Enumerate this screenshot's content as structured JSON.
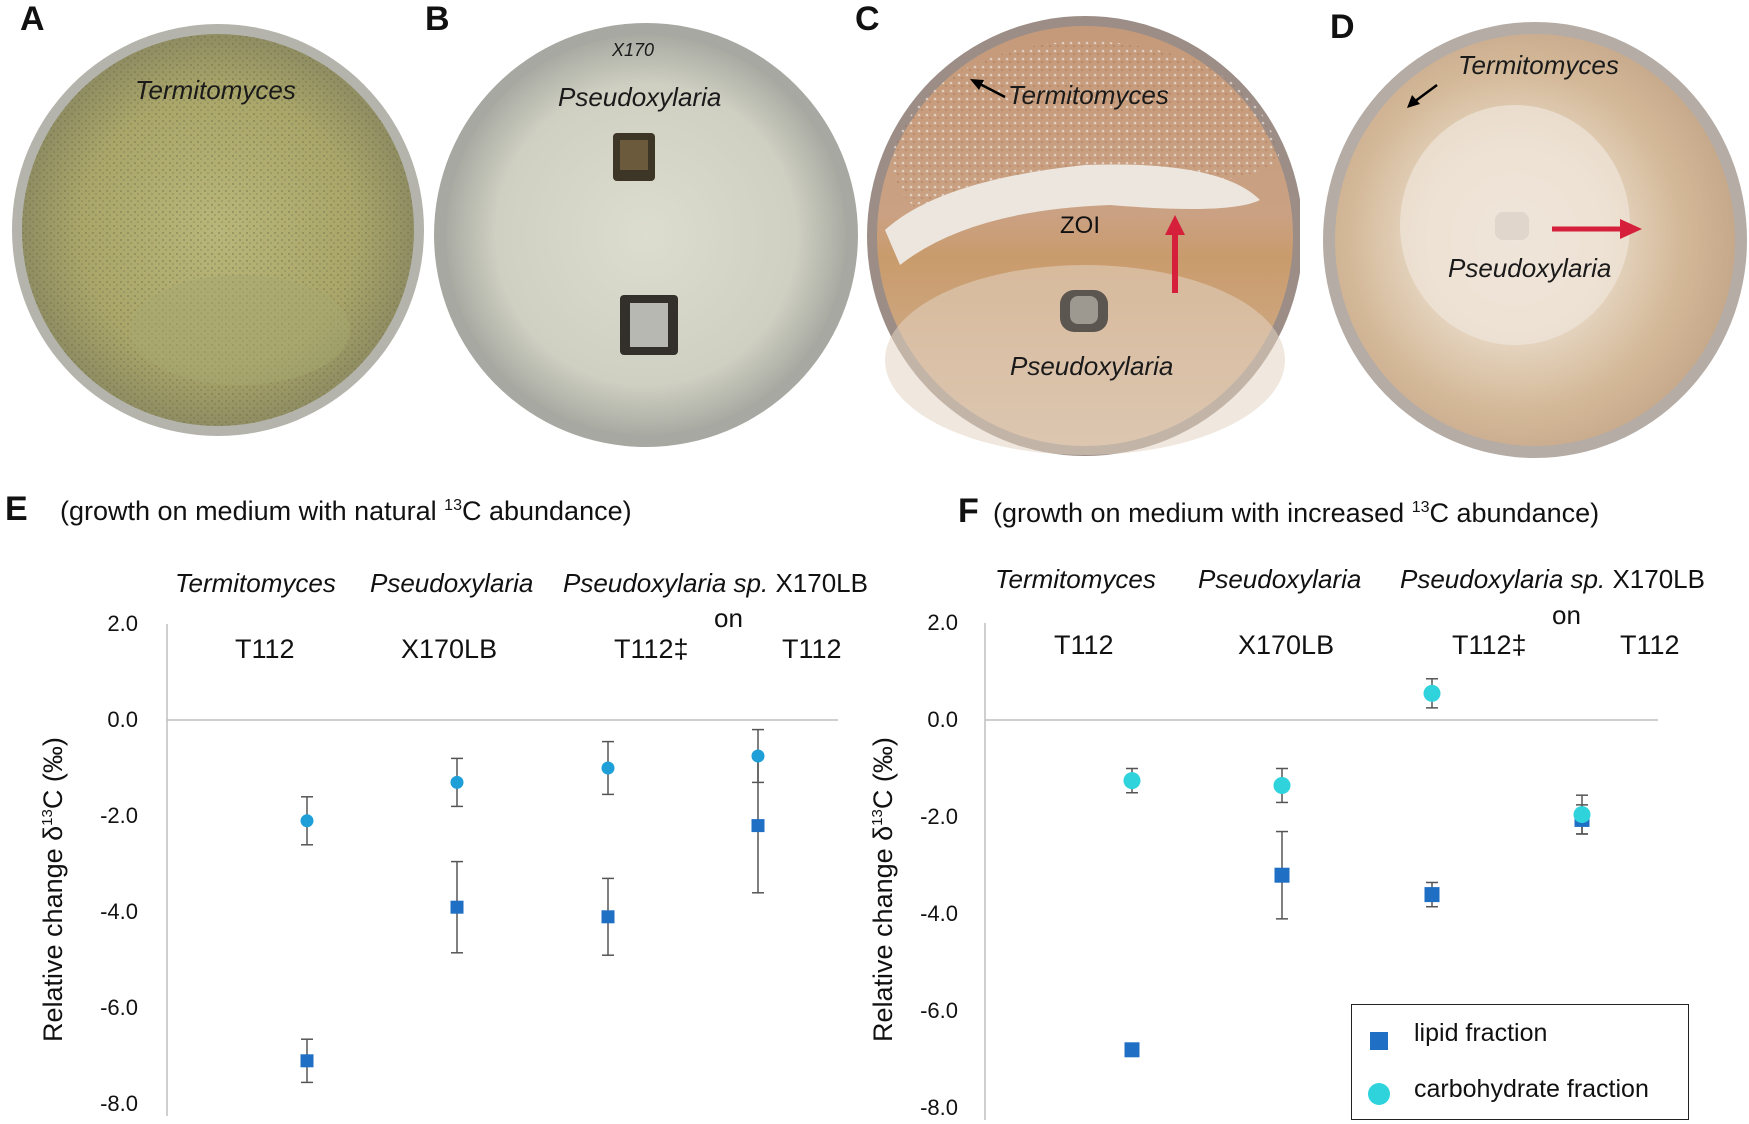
{
  "panels": {
    "A": {
      "letter": "A",
      "label": "Termitomyces"
    },
    "B": {
      "letter": "B",
      "label": "Pseudoxylaria",
      "marking": "X170"
    },
    "C": {
      "letter": "C",
      "label_top": "Termitomyces",
      "label_zoi": "ZOI",
      "label_bottom": "Pseudoxylaria"
    },
    "D": {
      "letter": "D",
      "label_top": "Termitomyces",
      "label_bottom": "Pseudoxylaria"
    }
  },
  "colors": {
    "lipid": "#1f6fc5",
    "carbohydrate": "#2ed3dc",
    "red_arrow": "#d61f3a"
  },
  "chart_data": [
    {
      "panel": "E",
      "type": "scatter",
      "title_prefix": "(growth  on medium with natural ",
      "title_sup": "13",
      "title_suffix": "C abundance)",
      "header": {
        "termitomyces": "Termitomyces",
        "pseudoxylaria": "Pseudoxylaria",
        "pseudo_sp": "Pseudoxylaria sp.",
        "strain": " X170LB",
        "on": "on"
      },
      "categories": [
        "T112",
        "X170LB",
        "T112‡",
        "T112"
      ],
      "ylabel_prefix": "Relative change δ",
      "ylabel_sup": "13",
      "ylabel_suffix": "C (‰)",
      "ylim": [
        -8.0,
        2.0
      ],
      "yticks": [
        "2.0",
        "0.0",
        "-2.0",
        "-4.0",
        "-6.0",
        "-8.0"
      ],
      "series": [
        {
          "name": "lipid fraction",
          "marker": "square",
          "values": [
            -7.1,
            -3.9,
            -4.1,
            -2.2
          ],
          "errors": [
            0.45,
            0.95,
            0.8,
            1.4
          ]
        },
        {
          "name": "carbohydrate fraction",
          "marker": "circle",
          "values": [
            -2.1,
            -1.3,
            -1.0,
            -0.75
          ],
          "errors": [
            0.5,
            0.5,
            0.55,
            0.55
          ]
        }
      ]
    },
    {
      "panel": "F",
      "type": "scatter",
      "title_prefix": "(growth  on medium with increased ",
      "title_sup": "13",
      "title_suffix": "C abundance)",
      "header": {
        "termitomyces": "Termitomyces",
        "pseudoxylaria": "Pseudoxylaria",
        "pseudo_sp": "Pseudoxylaria sp.",
        "strain": " X170LB",
        "on": "on"
      },
      "categories": [
        "T112",
        "X170LB",
        "T112‡",
        "T112"
      ],
      "ylabel_prefix": "Relative change δ",
      "ylabel_sup": "13",
      "ylabel_suffix": "C (‰)",
      "ylim": [
        -8.0,
        2.0
      ],
      "yticks": [
        "2.0",
        "0.0",
        "-2.0",
        "-4.0",
        "-6.0",
        "-8.0"
      ],
      "legend": {
        "lipid": "lipid fraction",
        "carbohydrate": "carbohydrate fraction",
        "position": "bottom-right"
      },
      "series": [
        {
          "name": "lipid fraction",
          "marker": "square",
          "values": [
            -6.8,
            -3.2,
            -3.6,
            -2.05
          ],
          "errors": [
            0.1,
            0.9,
            0.25,
            0.3
          ]
        },
        {
          "name": "carbohydrate fraction",
          "marker": "circle",
          "values": [
            -1.25,
            -1.35,
            0.55,
            -1.95
          ],
          "errors": [
            0.25,
            0.35,
            0.3,
            0.4
          ]
        }
      ]
    }
  ]
}
